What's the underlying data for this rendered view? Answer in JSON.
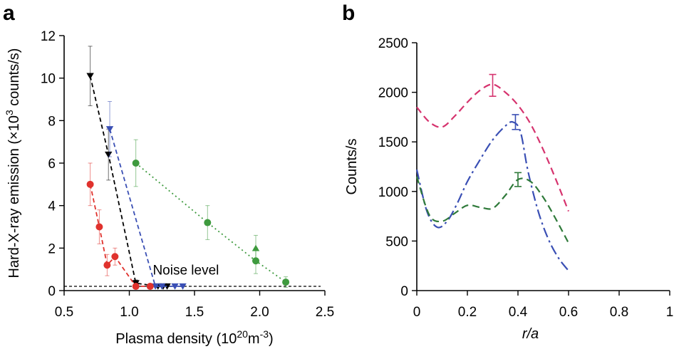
{
  "chart_data": [
    {
      "panel": "a",
      "type": "scatter",
      "xlabel": "Plasma density (10",
      "xlabel_sup1": "20",
      "xlabel_mid": "m",
      "xlabel_sup2": "-3",
      "xlabel_end": ")",
      "ylabel_pre": "Hard-X-ray emission (×10",
      "ylabel_sup": "3",
      "ylabel_post": " counts/s)",
      "xlim": [
        0.5,
        2.5
      ],
      "ylim": [
        0,
        12
      ],
      "xticks": [
        "0.5",
        "1.0",
        "1.5",
        "2.0",
        "2.5"
      ],
      "yticks": [
        "0",
        "2",
        "4",
        "6",
        "8",
        "10",
        "12"
      ],
      "noise_level": 0.2,
      "noise_label": "Noise level",
      "series": [
        {
          "name": "black",
          "color": "#000000",
          "marker": "triangle-down",
          "dash": "6,4",
          "x": [
            0.7,
            0.84,
            1.05,
            1.22,
            1.26,
            1.29
          ],
          "y": [
            10.1,
            6.4,
            0.35,
            0.2,
            0.2,
            0.2
          ],
          "err": [
            1.4,
            1.2,
            0.15,
            0,
            0,
            0
          ]
        },
        {
          "name": "blue",
          "color": "#3a4fb4",
          "marker": "triangle-down",
          "dash": "6,4",
          "x": [
            0.85,
            1.2,
            1.25,
            1.35,
            1.41
          ],
          "y": [
            7.6,
            0.2,
            0.2,
            0.2,
            0.2
          ],
          "err": [
            1.3,
            0,
            0,
            0,
            0
          ]
        },
        {
          "name": "red",
          "color": "#e0322d",
          "marker": "circle",
          "dash": "6,4",
          "x": [
            0.7,
            0.77,
            0.83,
            0.89,
            1.05,
            1.16
          ],
          "y": [
            5.0,
            3.0,
            1.2,
            1.6,
            0.2,
            0.2
          ],
          "err": [
            1.0,
            0.8,
            0.5,
            0.4,
            0.1,
            0.1
          ]
        },
        {
          "name": "green",
          "color": "#3e9a3e",
          "marker": "circle",
          "dash": "2,4",
          "x": [
            1.05,
            1.6,
            1.97,
            2.2
          ],
          "y": [
            6.0,
            3.2,
            1.4,
            0.4
          ],
          "err": [
            1.1,
            0.8,
            0.6,
            0.25
          ]
        },
        {
          "name": "green-triangle",
          "color": "#3e9a3e",
          "marker": "triangle-up",
          "dash": "",
          "x": [
            1.97
          ],
          "y": [
            2.0
          ],
          "err": [
            0.6
          ]
        }
      ]
    },
    {
      "panel": "b",
      "type": "line",
      "xlabel": "r/a",
      "ylabel": "Counts/s",
      "xlim": [
        0,
        1
      ],
      "ylim": [
        0,
        2500
      ],
      "xticks": [
        "0",
        "0.2",
        "0.4",
        "0.6",
        "0.8",
        "1"
      ],
      "yticks": [
        "0",
        "500",
        "1000",
        "1500",
        "2000",
        "2500"
      ],
      "series": [
        {
          "name": "magenta",
          "color": "#d6336e",
          "dash": "10,6",
          "x": [
            0,
            0.05,
            0.1,
            0.15,
            0.2,
            0.25,
            0.3,
            0.35,
            0.4,
            0.45,
            0.5,
            0.55,
            0.6
          ],
          "y": [
            1850,
            1700,
            1650,
            1760,
            1900,
            2020,
            2080,
            2000,
            1870,
            1680,
            1420,
            1120,
            800
          ],
          "errbar": {
            "x": 0.3,
            "y": 2070,
            "err": 110
          }
        },
        {
          "name": "blue",
          "color": "#3a4fb4",
          "dash": "14,5,3,5",
          "x": [
            0,
            0.04,
            0.08,
            0.12,
            0.16,
            0.2,
            0.25,
            0.3,
            0.35,
            0.38,
            0.41,
            0.44,
            0.48,
            0.52,
            0.56,
            0.6
          ],
          "y": [
            1220,
            800,
            640,
            700,
            880,
            1100,
            1320,
            1520,
            1660,
            1700,
            1600,
            1200,
            800,
            520,
            330,
            200
          ],
          "errbar": {
            "x": 0.39,
            "y": 1700,
            "err": 75
          }
        },
        {
          "name": "green",
          "color": "#2f7a3a",
          "dash": "10,6",
          "x": [
            0,
            0.05,
            0.1,
            0.15,
            0.2,
            0.25,
            0.3,
            0.35,
            0.4,
            0.45,
            0.5,
            0.55,
            0.6
          ],
          "y": [
            1150,
            760,
            700,
            780,
            860,
            840,
            830,
            960,
            1120,
            1100,
            940,
            720,
            480
          ],
          "errbar": {
            "x": 0.4,
            "y": 1120,
            "err": 70
          }
        }
      ]
    }
  ]
}
